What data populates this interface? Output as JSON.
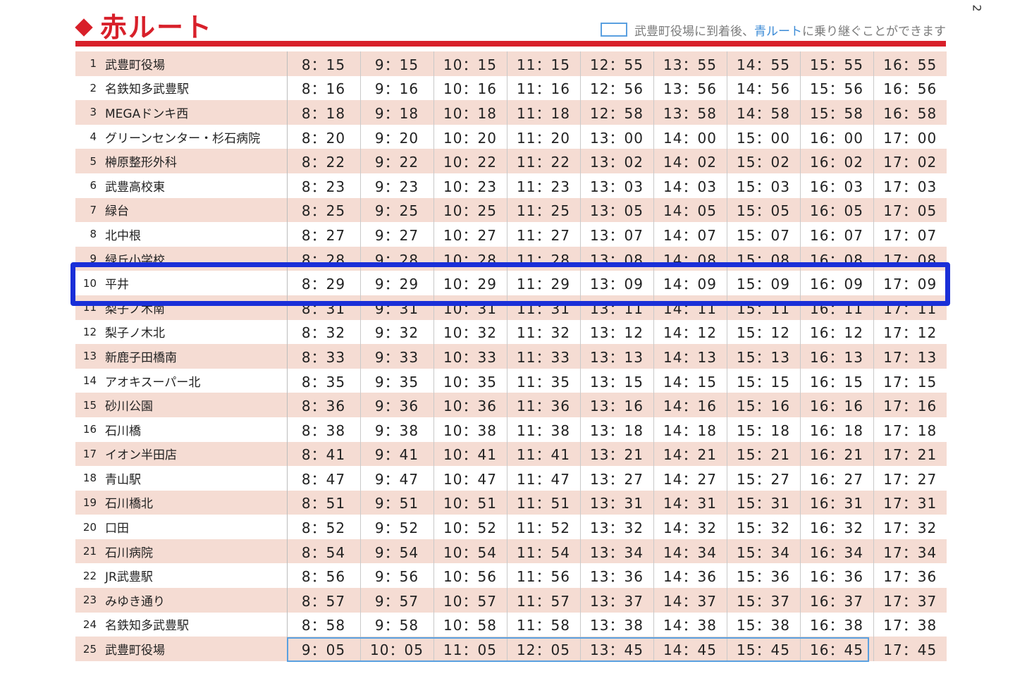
{
  "header": {
    "title": "赤ルート",
    "legend_pre": "武豊町役場に到着後、",
    "legend_blue": "青ルート",
    "legend_post": "に乗り継ぐことができます",
    "page_number": "2"
  },
  "colors": {
    "accent_red": "#d8202a",
    "row_stripe": "#f5dcd3",
    "legend_blue": "#5aa0e0",
    "scribble_blue": "#1a2fd8"
  },
  "rows": [
    {
      "num": "1",
      "stop": "武豊町役場",
      "times": [
        "8：15",
        "9：15",
        "10：15",
        "11：15",
        "12：55",
        "13：55",
        "14：55",
        "15：55",
        "16：55"
      ]
    },
    {
      "num": "2",
      "stop": "名鉄知多武豊駅",
      "times": [
        "8：16",
        "9：16",
        "10：16",
        "11：16",
        "12：56",
        "13：56",
        "14：56",
        "15：56",
        "16：56"
      ]
    },
    {
      "num": "3",
      "stop": "MEGAドンキ西",
      "times": [
        "8：18",
        "9：18",
        "10：18",
        "11：18",
        "12：58",
        "13：58",
        "14：58",
        "15：58",
        "16：58"
      ]
    },
    {
      "num": "4",
      "stop": "グリーンセンター・杉石病院",
      "times": [
        "8：20",
        "9：20",
        "10：20",
        "11：20",
        "13：00",
        "14：00",
        "15：00",
        "16：00",
        "17：00"
      ]
    },
    {
      "num": "5",
      "stop": "榊原整形外科",
      "times": [
        "8：22",
        "9：22",
        "10：22",
        "11：22",
        "13：02",
        "14：02",
        "15：02",
        "16：02",
        "17：02"
      ]
    },
    {
      "num": "6",
      "stop": "武豊高校東",
      "times": [
        "8：23",
        "9：23",
        "10：23",
        "11：23",
        "13：03",
        "14：03",
        "15：03",
        "16：03",
        "17：03"
      ]
    },
    {
      "num": "7",
      "stop": "緑台",
      "times": [
        "8：25",
        "9：25",
        "10：25",
        "11：25",
        "13：05",
        "14：05",
        "15：05",
        "16：05",
        "17：05"
      ]
    },
    {
      "num": "8",
      "stop": "北中根",
      "times": [
        "8：27",
        "9：27",
        "10：27",
        "11：27",
        "13：07",
        "14：07",
        "15：07",
        "16：07",
        "17：07"
      ]
    },
    {
      "num": "9",
      "stop": "緑丘小学校",
      "times": [
        "8：28",
        "9：28",
        "10：28",
        "11：28",
        "13：08",
        "14：08",
        "15：08",
        "16：08",
        "17：08"
      ]
    },
    {
      "num": "10",
      "stop": "平井",
      "times": [
        "8：29",
        "9：29",
        "10：29",
        "11：29",
        "13：09",
        "14：09",
        "15：09",
        "16：09",
        "17：09"
      ]
    },
    {
      "num": "11",
      "stop": "梨子ノ木南",
      "times": [
        "8：31",
        "9：31",
        "10：31",
        "11：31",
        "13：11",
        "14：11",
        "15：11",
        "16：11",
        "17：11"
      ]
    },
    {
      "num": "12",
      "stop": "梨子ノ木北",
      "times": [
        "8：32",
        "9：32",
        "10：32",
        "11：32",
        "13：12",
        "14：12",
        "15：12",
        "16：12",
        "17：12"
      ]
    },
    {
      "num": "13",
      "stop": "新鹿子田橋南",
      "times": [
        "8：33",
        "9：33",
        "10：33",
        "11：33",
        "13：13",
        "14：13",
        "15：13",
        "16：13",
        "17：13"
      ]
    },
    {
      "num": "14",
      "stop": "アオキスーパー北",
      "times": [
        "8：35",
        "9：35",
        "10：35",
        "11：35",
        "13：15",
        "14：15",
        "15：15",
        "16：15",
        "17：15"
      ]
    },
    {
      "num": "15",
      "stop": "砂川公園",
      "times": [
        "8：36",
        "9：36",
        "10：36",
        "11：36",
        "13：16",
        "14：16",
        "15：16",
        "16：16",
        "17：16"
      ]
    },
    {
      "num": "16",
      "stop": "石川橋",
      "times": [
        "8：38",
        "9：38",
        "10：38",
        "11：38",
        "13：18",
        "14：18",
        "15：18",
        "16：18",
        "17：18"
      ]
    },
    {
      "num": "17",
      "stop": "イオン半田店",
      "times": [
        "8：41",
        "9：41",
        "10：41",
        "11：41",
        "13：21",
        "14：21",
        "15：21",
        "16：21",
        "17：21"
      ]
    },
    {
      "num": "18",
      "stop": "青山駅",
      "times": [
        "8：47",
        "9：47",
        "10：47",
        "11：47",
        "13：27",
        "14：27",
        "15：27",
        "16：27",
        "17：27"
      ]
    },
    {
      "num": "19",
      "stop": "石川橋北",
      "times": [
        "8：51",
        "9：51",
        "10：51",
        "11：51",
        "13：31",
        "14：31",
        "15：31",
        "16：31",
        "17：31"
      ]
    },
    {
      "num": "20",
      "stop": "口田",
      "times": [
        "8：52",
        "9：52",
        "10：52",
        "11：52",
        "13：32",
        "14：32",
        "15：32",
        "16：32",
        "17：32"
      ]
    },
    {
      "num": "21",
      "stop": "石川病院",
      "times": [
        "8：54",
        "9：54",
        "10：54",
        "11：54",
        "13：34",
        "14：34",
        "15：34",
        "16：34",
        "17：34"
      ]
    },
    {
      "num": "22",
      "stop": "JR武豊駅",
      "times": [
        "8：56",
        "9：56",
        "10：56",
        "11：56",
        "13：36",
        "14：36",
        "15：36",
        "16：36",
        "17：36"
      ]
    },
    {
      "num": "23",
      "stop": "みゆき通り",
      "times": [
        "8：57",
        "9：57",
        "10：57",
        "11：57",
        "13：37",
        "14：37",
        "15：37",
        "16：37",
        "17：37"
      ]
    },
    {
      "num": "24",
      "stop": "名鉄知多武豊駅",
      "times": [
        "8：58",
        "9：58",
        "10：58",
        "11：58",
        "13：38",
        "14：38",
        "15：38",
        "16：38",
        "17：38"
      ]
    },
    {
      "num": "25",
      "stop": "武豊町役場",
      "times": [
        "9：05",
        "10：05",
        "11：05",
        "12：05",
        "13：45",
        "14：45",
        "15：45",
        "16：45",
        "17：45"
      ]
    }
  ]
}
